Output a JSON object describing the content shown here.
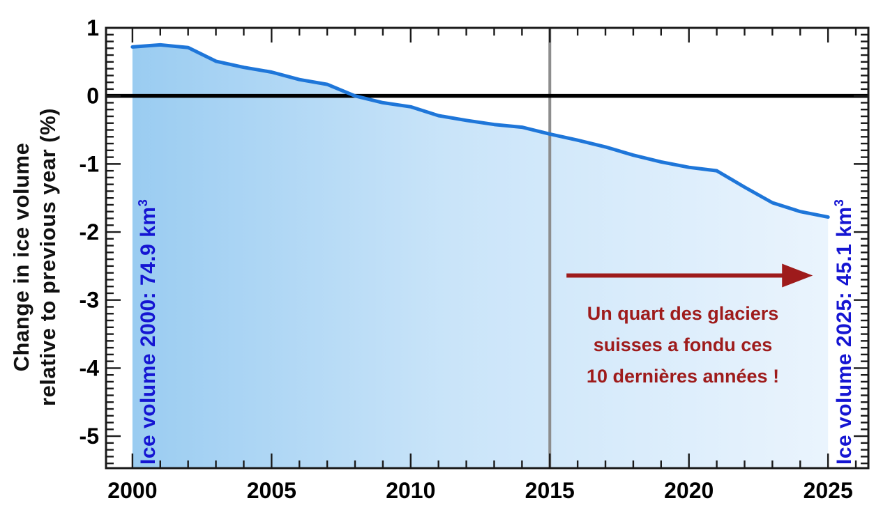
{
  "figure": {
    "background": "#ffffff"
  },
  "chart_data": {
    "type": "area",
    "title": "",
    "xlabel": "",
    "ylabel_lines": [
      "Change in ice volume",
      "relative to previous year (%)"
    ],
    "x": [
      2000,
      2001,
      2002,
      2003,
      2004,
      2005,
      2006,
      2007,
      2008,
      2009,
      2010,
      2011,
      2012,
      2013,
      2014,
      2015,
      2016,
      2017,
      2018,
      2019,
      2020,
      2021,
      2022,
      2023,
      2024,
      2025
    ],
    "values": [
      0.72,
      0.75,
      0.71,
      0.51,
      0.42,
      0.35,
      0.24,
      0.17,
      0.0,
      -0.1,
      -0.16,
      -0.29,
      -0.36,
      -0.42,
      -0.46,
      -0.56,
      -0.65,
      -0.75,
      -0.87,
      -0.97,
      -1.05,
      -1.1,
      -1.34,
      -1.57,
      -1.7,
      -1.78
    ],
    "xlim": [
      1999.05,
      2026.45
    ],
    "ylim": [
      -5.47,
      1.0
    ],
    "x_major_ticks": [
      2000,
      2005,
      2010,
      2015,
      2020,
      2025
    ],
    "x_minor_step": 1,
    "y_major_ticks": [
      1,
      0,
      -1,
      -2,
      -3,
      -4,
      -5
    ],
    "y_minor_step": 0.1,
    "grid": false,
    "legend": null,
    "zero_line": 0,
    "reference_line_x": 2015,
    "colors": {
      "curve": "#1e76d9",
      "fill_left": "#9accf1",
      "fill_mid": "#c9e4f9",
      "fill_right": "#eaf4fd",
      "zero_line": "#000000",
      "reference_line": "#8d8d8d",
      "axis": "#1a1a1a",
      "tick_label": "#000000"
    }
  },
  "annotations": {
    "left_volume": {
      "text": "Ice volume 2000: 74.9 km",
      "sup": "3",
      "color": "#1515d2"
    },
    "right_volume": {
      "text": "Ice volume 2025: 45.1 km",
      "sup": "3",
      "color": "#1515d2"
    },
    "melt_note": {
      "lines": [
        "Un quart des glaciers",
        "suisses a fondu ces",
        "10 dernières années !"
      ],
      "color": "#9e1b1b"
    },
    "arrow": {
      "from_x": 2015.6,
      "to_x": 2024.45,
      "y": -2.64,
      "color": "#9e1b1b"
    }
  }
}
